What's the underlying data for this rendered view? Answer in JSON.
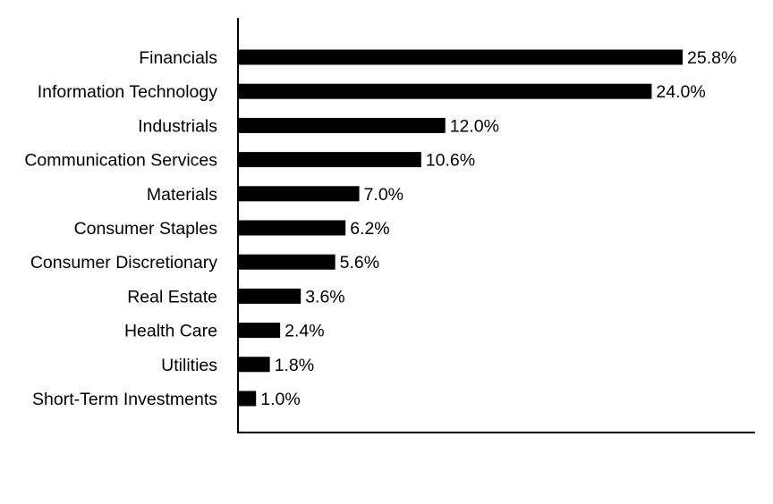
{
  "chart_data": {
    "type": "bar",
    "orientation": "horizontal",
    "title": "",
    "xlabel": "",
    "ylabel": "",
    "categories": [
      "Financials",
      "Information Technology",
      "Industrials",
      "Communication Services",
      "Materials",
      "Consumer Staples",
      "Consumer Discretionary",
      "Real Estate",
      "Health Care",
      "Utilities",
      "Short-Term Investments"
    ],
    "values": [
      25.8,
      24.0,
      12.0,
      10.6,
      7.0,
      6.2,
      5.6,
      3.6,
      2.4,
      1.8,
      1.0
    ],
    "value_labels": [
      "25.8%",
      "24.0%",
      "12.0%",
      "10.6%",
      "7.0%",
      "6.2%",
      "5.6%",
      "3.6%",
      "2.4%",
      "1.8%",
      "1.0%"
    ],
    "xlim": [
      0,
      30
    ],
    "grid": false,
    "bar_color": "#000000"
  }
}
